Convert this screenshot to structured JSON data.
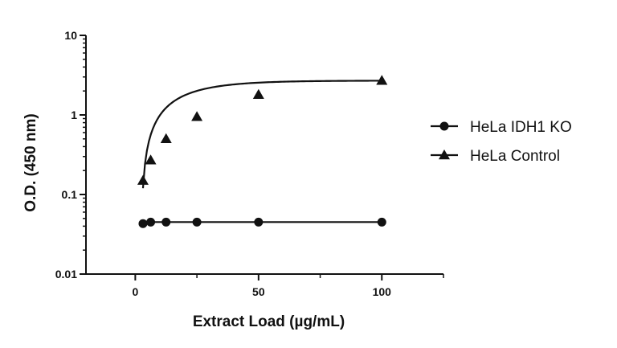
{
  "chart_data": {
    "type": "scatter",
    "title": "",
    "xlabel": "Extract Load (µg/mL)",
    "ylabel": "O.D. (450 nm)",
    "xlim": [
      -20,
      125
    ],
    "ylim": [
      0.01,
      10
    ],
    "yscale": "log",
    "x_ticks": [
      0,
      50,
      100
    ],
    "x_tick_labels": [
      "0",
      "50",
      "100"
    ],
    "y_ticks": [
      0.01,
      0.1,
      1,
      10
    ],
    "y_tick_labels": [
      "0.01",
      "0.1",
      "1",
      "10"
    ],
    "grid": false,
    "legend_position": "right",
    "series": [
      {
        "name": "HeLa IDH1 KO",
        "marker": "circle",
        "color": "#111111",
        "points": [
          {
            "x": 3.125,
            "y": 0.043
          },
          {
            "x": 6.25,
            "y": 0.045
          },
          {
            "x": 12.5,
            "y": 0.045
          },
          {
            "x": 25,
            "y": 0.045
          },
          {
            "x": 50,
            "y": 0.045
          },
          {
            "x": 100,
            "y": 0.045
          }
        ],
        "fit": {
          "model": "constant",
          "x_start": 3.125,
          "x_end": 100,
          "y": 0.045
        }
      },
      {
        "name": "HeLa Control",
        "marker": "triangle",
        "color": "#111111",
        "points": [
          {
            "x": 3.125,
            "y": 0.15
          },
          {
            "x": 6.25,
            "y": 0.27
          },
          {
            "x": 12.5,
            "y": 0.5
          },
          {
            "x": 25,
            "y": 0.95
          },
          {
            "x": 50,
            "y": 1.8
          },
          {
            "x": 100,
            "y": 2.7
          }
        ],
        "fit": {
          "model": "saturation",
          "x_start": 3.125,
          "x_end": 100,
          "y0": 0.12,
          "ymax": 2.7,
          "k": 0.06
        }
      }
    ]
  }
}
